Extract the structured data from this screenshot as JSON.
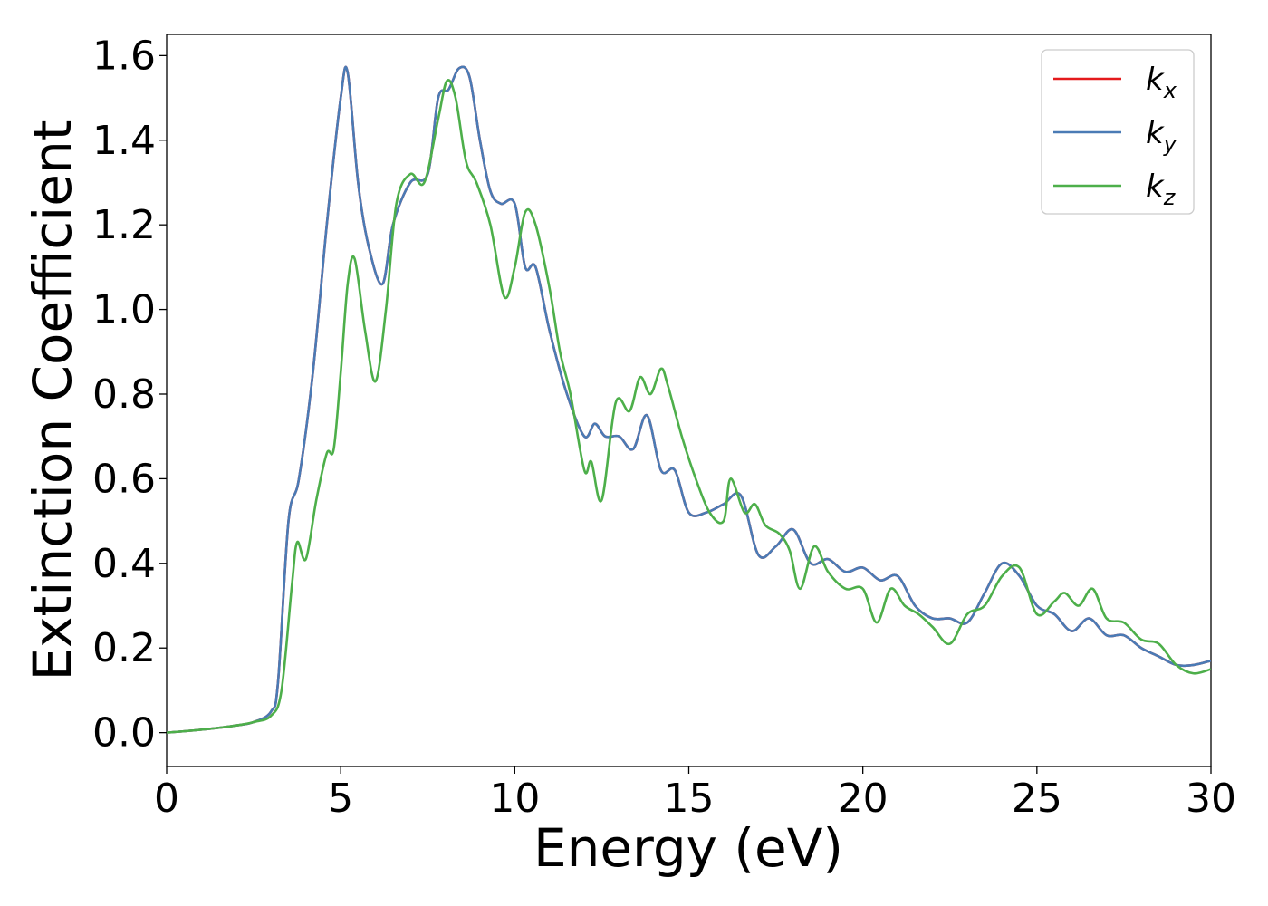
{
  "chart_data": {
    "type": "line",
    "xlabel": "Energy (eV)",
    "ylabel": "Extinction Coefficient",
    "xlim": [
      0,
      30
    ],
    "ylim": [
      -0.08,
      1.65
    ],
    "xticks": [
      0,
      5,
      10,
      15,
      20,
      25,
      30
    ],
    "yticks": [
      0.0,
      0.2,
      0.4,
      0.6,
      0.8,
      1.0,
      1.2,
      1.4,
      1.6
    ],
    "xtick_labels": [
      "0",
      "5",
      "10",
      "15",
      "20",
      "25",
      "30"
    ],
    "ytick_labels": [
      "0.0",
      "0.2",
      "0.4",
      "0.6",
      "0.8",
      "1.0",
      "1.2",
      "1.4",
      "1.6"
    ],
    "grid": false,
    "legend_position": "top-right",
    "series": [
      {
        "name": "k_x",
        "label_main": "k",
        "label_sub": "x",
        "color": "#e41a1c",
        "x": [
          0,
          1,
          2,
          2.5,
          3,
          3.2,
          3.5,
          3.8,
          4.2,
          4.6,
          5,
          5.2,
          5.5,
          5.8,
          6.2,
          6.5,
          7,
          7.5,
          7.8,
          8.1,
          8.4,
          8.7,
          9,
          9.3,
          9.6,
          10,
          10.3,
          10.6,
          11,
          11.5,
          12,
          12.3,
          12.6,
          13,
          13.4,
          13.8,
          14.2,
          14.6,
          15,
          15.5,
          16,
          16.5,
          17,
          17.5,
          18,
          18.5,
          19,
          19.5,
          20,
          20.5,
          21,
          21.5,
          22,
          22.5,
          23,
          23.5,
          24,
          24.5,
          25,
          25.5,
          26,
          26.5,
          27,
          27.5,
          28,
          28.5,
          29,
          29.5,
          30
        ],
        "y": [
          0,
          0.007,
          0.017,
          0.025,
          0.05,
          0.12,
          0.5,
          0.6,
          0.85,
          1.2,
          1.5,
          1.56,
          1.3,
          1.15,
          1.06,
          1.2,
          1.3,
          1.32,
          1.5,
          1.52,
          1.57,
          1.55,
          1.4,
          1.28,
          1.25,
          1.25,
          1.1,
          1.1,
          0.95,
          0.8,
          0.7,
          0.73,
          0.7,
          0.7,
          0.67,
          0.75,
          0.62,
          0.62,
          0.52,
          0.52,
          0.54,
          0.56,
          0.42,
          0.44,
          0.48,
          0.4,
          0.41,
          0.38,
          0.39,
          0.36,
          0.37,
          0.3,
          0.27,
          0.27,
          0.26,
          0.33,
          0.4,
          0.37,
          0.3,
          0.28,
          0.24,
          0.27,
          0.23,
          0.23,
          0.2,
          0.18,
          0.16,
          0.16,
          0.17
        ]
      },
      {
        "name": "k_y",
        "label_main": "k",
        "label_sub": "y",
        "color": "#4a7bb5",
        "x": [
          0,
          1,
          2,
          2.5,
          3,
          3.2,
          3.5,
          3.8,
          4.2,
          4.6,
          5,
          5.2,
          5.5,
          5.8,
          6.2,
          6.5,
          7,
          7.5,
          7.8,
          8.1,
          8.4,
          8.7,
          9,
          9.3,
          9.6,
          10,
          10.3,
          10.6,
          11,
          11.5,
          12,
          12.3,
          12.6,
          13,
          13.4,
          13.8,
          14.2,
          14.6,
          15,
          15.5,
          16,
          16.5,
          17,
          17.5,
          18,
          18.5,
          19,
          19.5,
          20,
          20.5,
          21,
          21.5,
          22,
          22.5,
          23,
          23.5,
          24,
          24.5,
          25,
          25.5,
          26,
          26.5,
          27,
          27.5,
          28,
          28.5,
          29,
          29.5,
          30
        ],
        "y": [
          0,
          0.007,
          0.017,
          0.025,
          0.05,
          0.12,
          0.5,
          0.6,
          0.85,
          1.2,
          1.5,
          1.56,
          1.3,
          1.15,
          1.06,
          1.2,
          1.3,
          1.32,
          1.5,
          1.52,
          1.57,
          1.55,
          1.4,
          1.28,
          1.25,
          1.25,
          1.1,
          1.1,
          0.95,
          0.8,
          0.7,
          0.73,
          0.7,
          0.7,
          0.67,
          0.75,
          0.62,
          0.62,
          0.52,
          0.52,
          0.54,
          0.56,
          0.42,
          0.44,
          0.48,
          0.4,
          0.41,
          0.38,
          0.39,
          0.36,
          0.37,
          0.3,
          0.27,
          0.27,
          0.26,
          0.33,
          0.4,
          0.37,
          0.3,
          0.28,
          0.24,
          0.27,
          0.23,
          0.23,
          0.2,
          0.18,
          0.16,
          0.16,
          0.17
        ]
      },
      {
        "name": "k_z",
        "label_main": "k",
        "label_sub": "z",
        "color": "#4daf4a",
        "x": [
          0,
          1,
          2,
          2.5,
          3,
          3.3,
          3.6,
          3.75,
          4,
          4.3,
          4.6,
          4.8,
          5,
          5.2,
          5.4,
          5.7,
          6,
          6.3,
          6.6,
          7,
          7.4,
          7.8,
          8.05,
          8.3,
          8.6,
          8.9,
          9.3,
          9.7,
          10,
          10.3,
          10.6,
          11,
          11.3,
          11.6,
          12,
          12.2,
          12.5,
          12.9,
          13.3,
          13.6,
          13.9,
          14.2,
          14.4,
          14.8,
          15.2,
          15.6,
          16,
          16.2,
          16.6,
          16.9,
          17.2,
          17.6,
          17.9,
          18.2,
          18.6,
          19,
          19.5,
          20,
          20.4,
          20.8,
          21.2,
          21.6,
          22,
          22.5,
          23,
          23.5,
          24,
          24.5,
          25,
          25.5,
          25.8,
          26.2,
          26.6,
          27,
          27.5,
          28,
          28.5,
          29,
          29.5,
          30
        ],
        "y": [
          0,
          0.007,
          0.017,
          0.025,
          0.04,
          0.1,
          0.35,
          0.45,
          0.41,
          0.55,
          0.66,
          0.67,
          0.85,
          1.06,
          1.12,
          0.95,
          0.83,
          1.0,
          1.25,
          1.32,
          1.3,
          1.45,
          1.54,
          1.5,
          1.35,
          1.3,
          1.2,
          1.03,
          1.1,
          1.23,
          1.2,
          1.05,
          0.9,
          0.8,
          0.62,
          0.64,
          0.55,
          0.78,
          0.76,
          0.84,
          0.8,
          0.86,
          0.82,
          0.7,
          0.6,
          0.52,
          0.5,
          0.6,
          0.52,
          0.54,
          0.49,
          0.47,
          0.43,
          0.34,
          0.44,
          0.38,
          0.34,
          0.34,
          0.26,
          0.34,
          0.3,
          0.28,
          0.25,
          0.21,
          0.28,
          0.3,
          0.37,
          0.39,
          0.28,
          0.31,
          0.33,
          0.3,
          0.34,
          0.27,
          0.26,
          0.22,
          0.21,
          0.16,
          0.14,
          0.15
        ]
      }
    ]
  }
}
